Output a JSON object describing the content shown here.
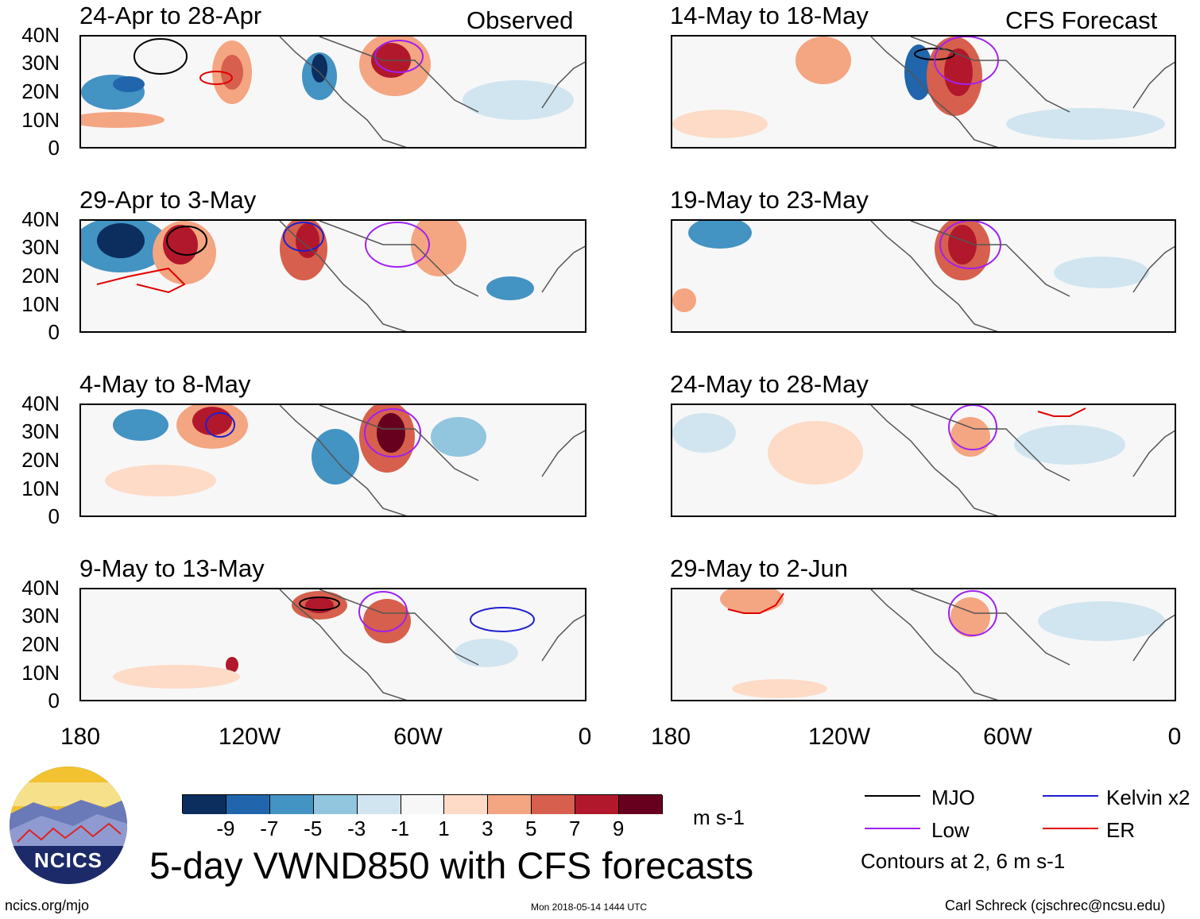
{
  "header": {
    "observed_label": "Observed",
    "forecast_label": "CFS Forecast"
  },
  "panels": [
    {
      "title": "24-Apr to 28-Apr"
    },
    {
      "title": "29-Apr to 3-May"
    },
    {
      "title": "4-May to 8-May"
    },
    {
      "title": "9-May to 13-May"
    },
    {
      "title": "14-May to 18-May"
    },
    {
      "title": "19-May to 23-May"
    },
    {
      "title": "24-May to 28-May"
    },
    {
      "title": "29-May to 2-Jun"
    }
  ],
  "axes": {
    "lat_labels": [
      "40N",
      "30N",
      "20N",
      "10N",
      "0"
    ],
    "lon_labels": [
      "180",
      "120W",
      "60W",
      "0"
    ]
  },
  "colorbar": {
    "colors": [
      "#0b2e5e",
      "#2166ac",
      "#4393c3",
      "#92c5de",
      "#d1e5f0",
      "#f7f7f7",
      "#fddbc7",
      "#f4a582",
      "#d6604d",
      "#b2182b",
      "#67001f"
    ],
    "ticks": [
      "-9",
      "-7",
      "-5",
      "-3",
      "-1",
      "1",
      "3",
      "5",
      "7",
      "9"
    ],
    "units": "m s-1"
  },
  "legend": {
    "items": [
      {
        "label": "MJO",
        "color": "#000000"
      },
      {
        "label": "Kelvin x2",
        "color": "#1f1fd0"
      },
      {
        "label": "Low",
        "color": "#a020f0"
      },
      {
        "label": "ER",
        "color": "#e00000"
      }
    ],
    "note": "Contours at 2, 6 m s-1"
  },
  "logo": {
    "text": "NCICS"
  },
  "footer": {
    "title": "5-day VWND850 with CFS forecasts",
    "url": "ncics.org/mjo",
    "timestamp": "Mon 2018-05-14 1444 UTC",
    "author": "Carl Schreck (cjschrec@ncsu.edu)"
  }
}
